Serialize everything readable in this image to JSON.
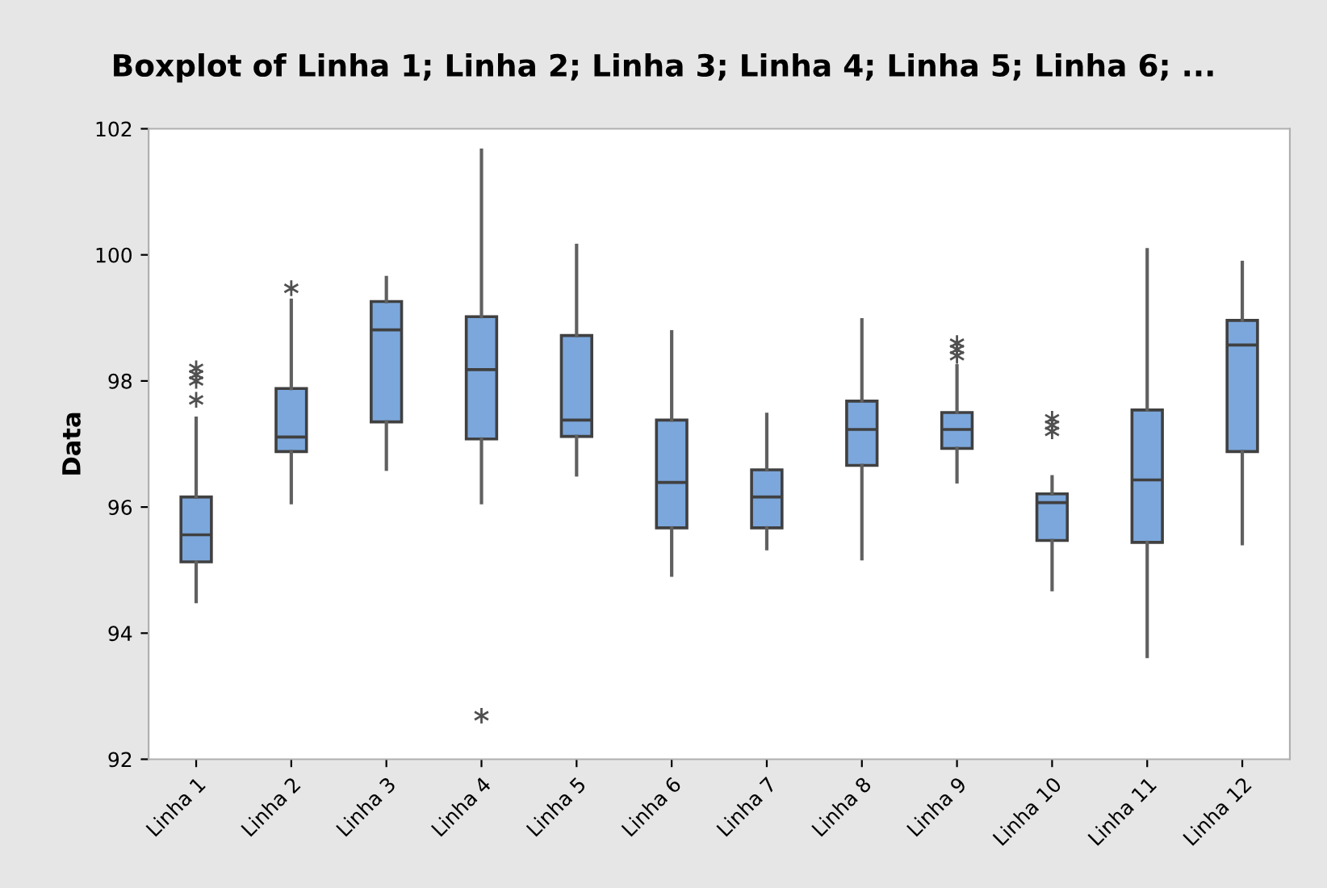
{
  "chart_data": {
    "type": "box",
    "title": "Boxplot of Linha 1; Linha 2; Linha 3; Linha 4; Linha 5; Linha 6; ...",
    "ylabel": "Data",
    "categories": [
      "Linha 1",
      "Linha 2",
      "Linha 3",
      "Linha 4",
      "Linha 5",
      "Linha 6",
      "Linha 7",
      "Linha 8",
      "Linha 9",
      "Linha 10",
      "Linha 11",
      "Linha 12"
    ],
    "series": [
      {
        "color": "#7ba7dc",
        "boxes": [
          {
            "low": 94.5,
            "q1": 95.13,
            "median": 95.56,
            "q3": 96.16,
            "high": 97.41,
            "outliers": [
              98.2,
              98.1,
              98.0,
              97.7
            ]
          },
          {
            "low": 96.07,
            "q1": 96.88,
            "median": 97.11,
            "q3": 97.88,
            "high": 99.28,
            "outliers": [
              99.47
            ]
          },
          {
            "low": 96.6,
            "q1": 97.35,
            "median": 98.81,
            "q3": 99.26,
            "high": 99.64
          },
          {
            "low": 96.07,
            "q1": 97.08,
            "median": 98.18,
            "q3": 99.02,
            "high": 101.66,
            "outliers": [
              92.69
            ]
          },
          {
            "low": 96.51,
            "q1": 97.12,
            "median": 97.38,
            "q3": 98.72,
            "high": 100.15
          },
          {
            "low": 94.92,
            "q1": 95.67,
            "median": 96.39,
            "q3": 97.38,
            "high": 98.78
          },
          {
            "low": 95.34,
            "q1": 95.67,
            "median": 96.16,
            "q3": 96.59,
            "high": 97.47
          },
          {
            "low": 95.18,
            "q1": 96.66,
            "median": 97.23,
            "q3": 97.68,
            "high": 98.97
          },
          {
            "low": 96.4,
            "q1": 96.93,
            "median": 97.23,
            "q3": 97.5,
            "high": 98.24,
            "outliers": [
              98.6,
              98.5,
              98.4
            ]
          },
          {
            "low": 94.69,
            "q1": 95.47,
            "median": 96.07,
            "q3": 96.21,
            "high": 96.48,
            "outliers": [
              97.4,
              97.3,
              97.2
            ]
          },
          {
            "low": 93.63,
            "q1": 95.44,
            "median": 96.43,
            "q3": 97.54,
            "high": 100.08
          },
          {
            "low": 95.42,
            "q1": 96.88,
            "median": 98.57,
            "q3": 98.96,
            "high": 99.88
          }
        ]
      }
    ],
    "ylim": [
      92,
      102
    ],
    "yticks": [
      92,
      94,
      96,
      98,
      100,
      102
    ],
    "grid": false,
    "legend": false,
    "marker": "cross"
  }
}
